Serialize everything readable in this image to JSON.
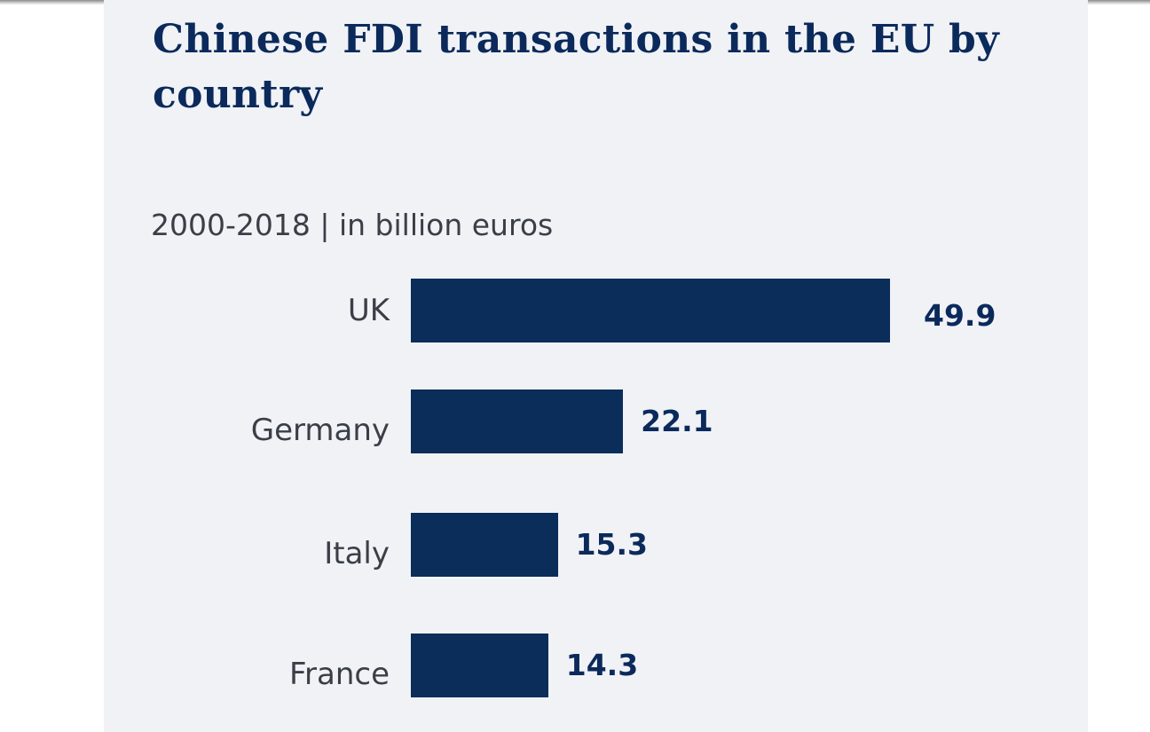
{
  "chart_data": {
    "type": "bar",
    "orientation": "horizontal",
    "title": "Chinese FDI transactions in the EU by country",
    "subtitle": "2000-2018 | in billion euros",
    "categories": [
      "UK",
      "Germany",
      "Italy",
      "France"
    ],
    "values": [
      49.9,
      22.1,
      15.3,
      14.3
    ],
    "value_labels": [
      "49.9",
      "22.1",
      "15.3",
      "14.3"
    ],
    "xlim": [
      0,
      49.9
    ],
    "grid": false,
    "bar_color": "#0a2d5a"
  }
}
